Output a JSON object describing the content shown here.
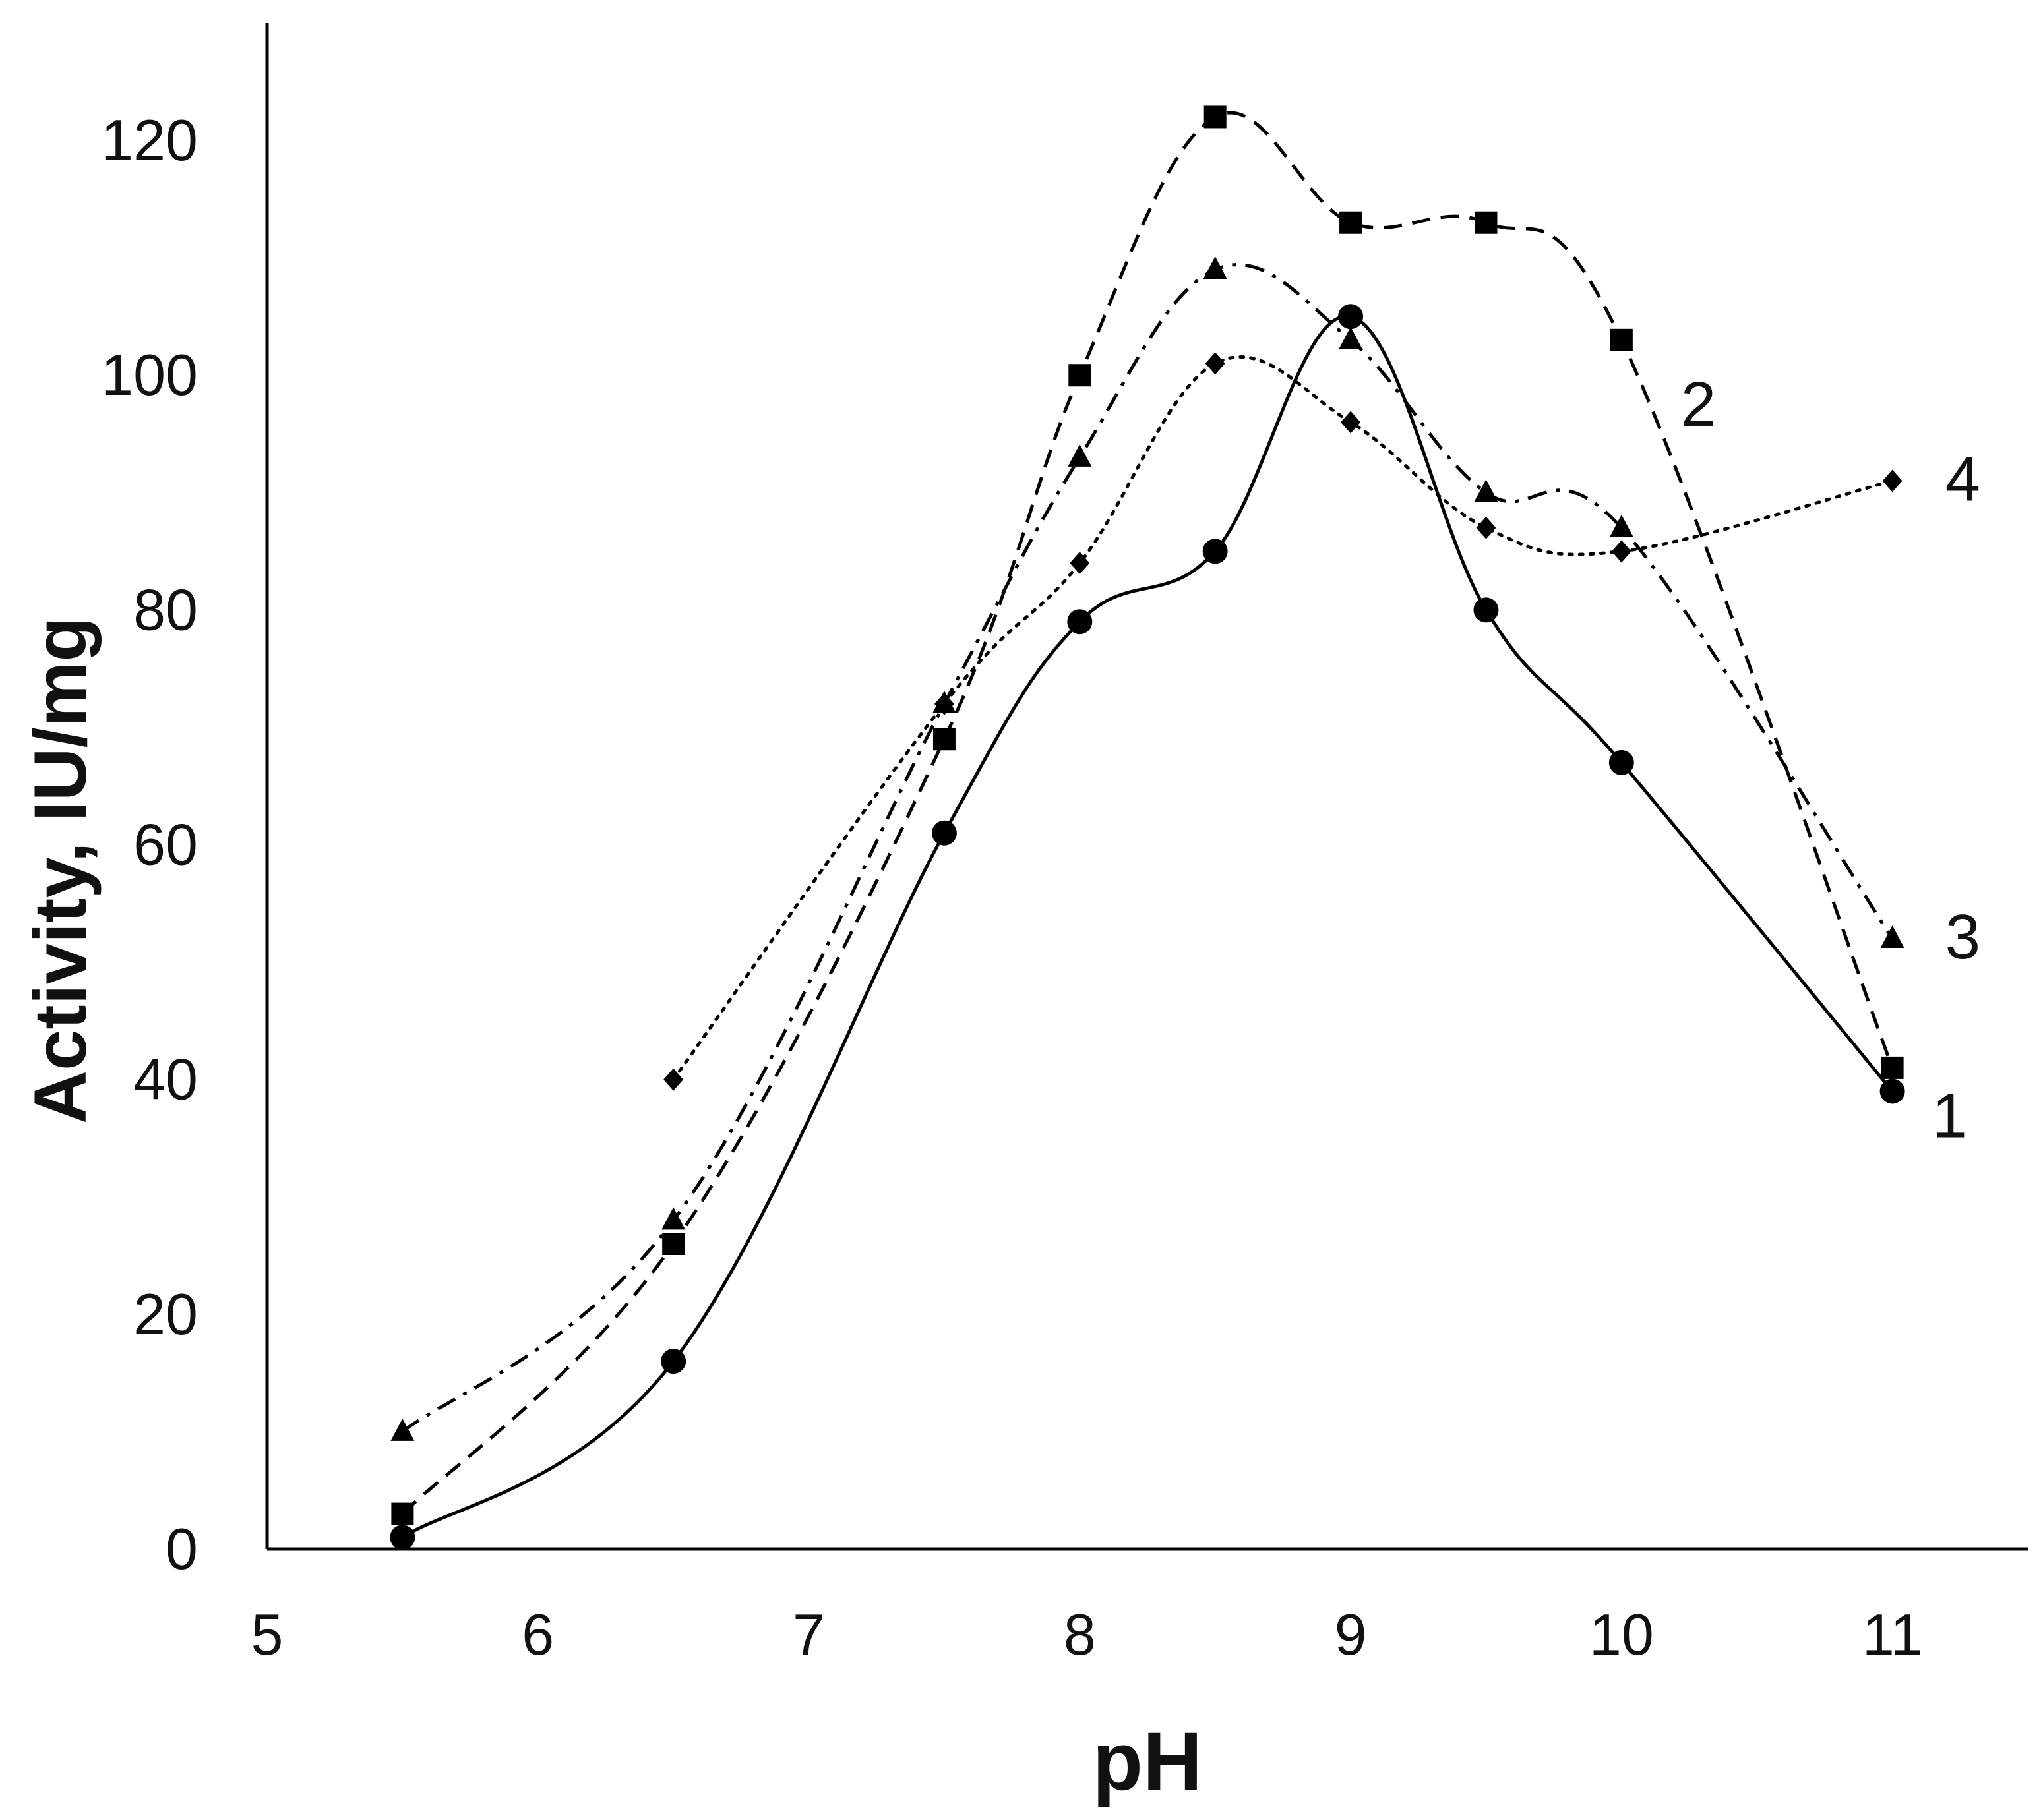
{
  "chart_data": {
    "type": "line",
    "title": "",
    "xlabel": "pH",
    "ylabel": "Activity, IU/mg",
    "xlim": [
      5,
      11.5
    ],
    "ylim": [
      0,
      130
    ],
    "xticks": [
      5,
      6,
      7,
      8,
      9,
      10,
      11
    ],
    "yticks": [
      0,
      20,
      40,
      60,
      80,
      100,
      120
    ],
    "x_tick_labels": [
      "5",
      "6",
      "7",
      "8",
      "9",
      "10",
      "11"
    ],
    "y_tick_labels": [
      "0",
      "20",
      "40",
      "60",
      "80",
      "100",
      "120"
    ],
    "grid": false,
    "legend": "inline end labels",
    "series": [
      {
        "name": "1",
        "label": "1",
        "line_style": "solid",
        "marker": "circle",
        "color": "#000000",
        "x": [
          5.5,
          6.5,
          7.5,
          8,
          8.5,
          9,
          9.5,
          10,
          11
        ],
        "y": [
          1,
          16,
          61,
          79,
          85,
          105,
          80,
          67,
          39
        ]
      },
      {
        "name": "2",
        "label": "2",
        "line_style": "dashed",
        "marker": "square",
        "color": "#000000",
        "x": [
          5.5,
          6.5,
          7.5,
          8,
          8.5,
          9,
          9.5,
          10,
          11
        ],
        "y": [
          3,
          26,
          69,
          100,
          122,
          113,
          113,
          103,
          41
        ]
      },
      {
        "name": "3",
        "label": "3",
        "line_style": "dash-dot",
        "marker": "triangle",
        "color": "#000000",
        "x": [
          5.5,
          6.5,
          7.5,
          8,
          8.5,
          9,
          9.5,
          10,
          11
        ],
        "y": [
          10,
          28,
          72,
          93,
          109,
          103,
          90,
          87,
          52
        ]
      },
      {
        "name": "4",
        "label": "4",
        "line_style": "dotted",
        "marker": "diamond",
        "color": "#000000",
        "x": [
          6.5,
          7.5,
          8,
          8.5,
          9,
          9.5,
          10,
          11
        ],
        "y": [
          40,
          72,
          84,
          101,
          96,
          87,
          85,
          91
        ]
      }
    ]
  }
}
